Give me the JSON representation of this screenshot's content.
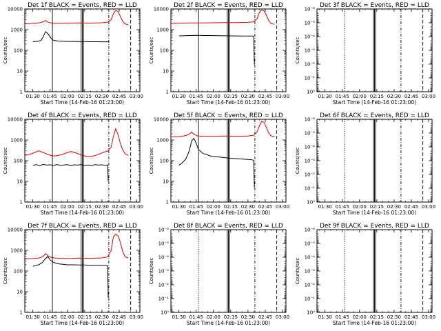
{
  "figure": {
    "xlabel": "Start Time (14-Feb-16 01:23:00)",
    "ylabel": "Counts/sec",
    "x_ticks": [
      "01:30",
      "01:45",
      "02:00",
      "02:15",
      "02:30",
      "02:45",
      "03:00"
    ],
    "x_tick_minutes": [
      90,
      105,
      120,
      135,
      150,
      165,
      180
    ],
    "colors": {
      "events": "#000000",
      "lld": "#e00000"
    }
  },
  "chart_data": [
    {
      "type": "line",
      "title": "Det 1f BLACK = Events, RED = LLD",
      "ylabel": "Counts/sec",
      "xlabel": "Start Time (14-Feb-16 01:23:00)",
      "xlim": [
        83,
        183
      ],
      "ylim": [
        1,
        10000
      ],
      "ytick_labels": [
        "1",
        "10",
        "100",
        "1000",
        "10000"
      ],
      "ytick_values": [
        1,
        10,
        100,
        1000,
        10000
      ],
      "grid": false,
      "annotations": [],
      "vlines": [
        {
          "x": 107,
          "style": "solid"
        },
        {
          "x": 132,
          "style": "solid"
        },
        {
          "x": 133,
          "style": "solid"
        },
        {
          "x": 134,
          "style": "solid"
        },
        {
          "x": 156,
          "style": "dashdot"
        },
        {
          "x": 175,
          "style": "dashed"
        }
      ],
      "series": [
        {
          "name": "Events",
          "color": "#000000",
          "x": [
            90,
            91,
            93,
            95,
            97,
            99,
            101,
            103,
            105,
            107,
            109,
            112,
            115,
            120,
            125,
            130,
            135,
            140,
            145,
            150,
            155,
            156
          ],
          "y": [
            260,
            270,
            270,
            280,
            300,
            450,
            800,
            650,
            450,
            320,
            300,
            280,
            275,
            270,
            270,
            265,
            265,
            262,
            262,
            260,
            260,
            260
          ]
        },
        {
          "name": "LLD",
          "color": "#e00000",
          "x": [
            83,
            90,
            95,
            99,
            101,
            103,
            106,
            110,
            120,
            130,
            140,
            150,
            155,
            158,
            160,
            162,
            164,
            166,
            168,
            170,
            173
          ],
          "y": [
            1900,
            2000,
            2100,
            2400,
            2800,
            2300,
            2100,
            2000,
            2050,
            2100,
            2050,
            2150,
            2300,
            3000,
            6000,
            8500,
            7500,
            4500,
            2600,
            1900,
            1700
          ]
        }
      ]
    },
    {
      "type": "line",
      "title": "Det 2f BLACK = Events, RED = LLD",
      "ylabel": "Counts/sec",
      "xlabel": "Start Time (14-Feb-16 01:23:00)",
      "xlim": [
        83,
        183
      ],
      "ylim": [
        1,
        10000
      ],
      "ytick_labels": [
        "1",
        "10",
        "100",
        "1000",
        "10000"
      ],
      "ytick_values": [
        1,
        10,
        100,
        1000,
        10000
      ],
      "grid": false,
      "annotations": [],
      "vlines": [
        {
          "x": 107,
          "style": "solid"
        },
        {
          "x": 132,
          "style": "solid"
        },
        {
          "x": 133,
          "style": "solid"
        },
        {
          "x": 134,
          "style": "solid"
        },
        {
          "x": 156,
          "style": "dashdot"
        },
        {
          "x": 175,
          "style": "dashed"
        }
      ],
      "series": [
        {
          "name": "Events",
          "color": "#000000",
          "x": [
            90,
            95,
            100,
            105,
            110,
            115,
            120,
            125,
            130,
            135,
            140,
            145,
            150,
            154,
            155,
            155.5
          ],
          "y": [
            500,
            510,
            520,
            530,
            525,
            520,
            515,
            510,
            505,
            500,
            498,
            495,
            490,
            490,
            480,
            20
          ]
        },
        {
          "name": "LLD",
          "color": "#e00000",
          "x": [
            83,
            90,
            100,
            110,
            120,
            130,
            140,
            150,
            155,
            158,
            160,
            162,
            164,
            166,
            168,
            170,
            173
          ],
          "y": [
            2000,
            2050,
            2100,
            2100,
            2150,
            2200,
            2200,
            2250,
            2400,
            3500,
            7000,
            9000,
            8000,
            5000,
            2800,
            2000,
            1800
          ]
        }
      ]
    },
    {
      "type": "line",
      "title": "Det 3f BLACK = Events, RED = LLD",
      "ylabel": "Counts/sec",
      "xlabel": "Start Time (14-Feb-16 01:23:00)",
      "xlim": [
        83,
        183
      ],
      "ylim": [
        1,
        1e-06
      ],
      "ytick_labels": [
        "10⁰",
        "10⁻¹",
        "10⁻²",
        "10⁻³",
        "10⁻⁴",
        "10⁻⁵",
        "10⁻⁶"
      ],
      "ytick_values": [
        1,
        0.1,
        0.01,
        0.001,
        0.0001,
        1e-05,
        1e-06
      ],
      "grid": false,
      "annotations": [],
      "vlines": [
        {
          "x": 107,
          "style": "dotted"
        },
        {
          "x": 132,
          "style": "solid"
        },
        {
          "x": 133,
          "style": "solid"
        },
        {
          "x": 134,
          "style": "solid"
        },
        {
          "x": 156,
          "style": "dashdot"
        },
        {
          "x": 175,
          "style": "dashed"
        }
      ],
      "series": []
    },
    {
      "type": "line",
      "title": "Det 4f BLACK = Events, RED = LLD",
      "ylabel": "Counts/sec",
      "xlabel": "Start Time (14-Feb-16 01:23:00)",
      "xlim": [
        83,
        183
      ],
      "ylim": [
        1,
        10000
      ],
      "ytick_labels": [
        "1",
        "10",
        "100",
        "1000",
        "10000"
      ],
      "ytick_values": [
        1,
        10,
        100,
        1000,
        10000
      ],
      "grid": false,
      "annotations": [],
      "vlines": [
        {
          "x": 107,
          "style": "solid"
        },
        {
          "x": 132,
          "style": "solid"
        },
        {
          "x": 133,
          "style": "solid"
        },
        {
          "x": 134,
          "style": "solid"
        },
        {
          "x": 156,
          "style": "dashdot"
        },
        {
          "x": 175,
          "style": "dashed"
        }
      ],
      "series": [
        {
          "name": "Events",
          "color": "#000000",
          "x": [
            90,
            93,
            96,
            99,
            102,
            105,
            108,
            111,
            114,
            117,
            120,
            123,
            126,
            129,
            132,
            135,
            138,
            141,
            144,
            147,
            150,
            153,
            155,
            155.5
          ],
          "y": [
            60,
            64,
            58,
            66,
            61,
            63,
            59,
            65,
            60,
            62,
            64,
            58,
            63,
            61,
            65,
            60,
            62,
            59,
            64,
            61,
            63,
            60,
            62,
            10
          ]
        },
        {
          "name": "LLD",
          "color": "#e00000",
          "x": [
            83,
            87,
            91,
            95,
            99,
            103,
            107,
            111,
            115,
            119,
            123,
            127,
            131,
            135,
            139,
            143,
            147,
            151,
            155,
            158,
            160,
            162,
            164,
            166,
            168,
            170,
            173
          ],
          "y": [
            180,
            200,
            240,
            300,
            250,
            200,
            170,
            175,
            195,
            235,
            280,
            240,
            200,
            170,
            160,
            170,
            200,
            250,
            290,
            450,
            1500,
            3500,
            1800,
            700,
            350,
            220,
            180
          ]
        }
      ]
    },
    {
      "type": "line",
      "title": "Det 5f BLACK = Events, RED = LLD",
      "ylabel": "Counts/sec",
      "xlabel": "Start Time (14-Feb-16 01:23:00)",
      "xlim": [
        83,
        183
      ],
      "ylim": [
        1,
        10000
      ],
      "ytick_labels": [
        "1",
        "10",
        "100",
        "1000",
        "10000"
      ],
      "ytick_values": [
        1,
        10,
        100,
        1000,
        10000
      ],
      "grid": false,
      "annotations": [],
      "vlines": [
        {
          "x": 107,
          "style": "solid"
        },
        {
          "x": 132,
          "style": "solid"
        },
        {
          "x": 133,
          "style": "solid"
        },
        {
          "x": 134,
          "style": "solid"
        },
        {
          "x": 156,
          "style": "dashdot"
        },
        {
          "x": 175,
          "style": "dashed"
        }
      ],
      "series": [
        {
          "name": "Events",
          "color": "#000000",
          "x": [
            90,
            93,
            96,
            99,
            101,
            103,
            105,
            107,
            109,
            111,
            114,
            117,
            120,
            125,
            130,
            135,
            140,
            145,
            150,
            154,
            155,
            155.5
          ],
          "y": [
            60,
            80,
            120,
            300,
            900,
            1200,
            700,
            350,
            280,
            220,
            200,
            170,
            160,
            150,
            140,
            130,
            125,
            120,
            115,
            110,
            100,
            5
          ]
        },
        {
          "name": "LLD",
          "color": "#e00000",
          "x": [
            83,
            90,
            95,
            99,
            101,
            103,
            106,
            110,
            120,
            130,
            140,
            150,
            155,
            158,
            160,
            162,
            164,
            166,
            168,
            170,
            173
          ],
          "y": [
            1400,
            1450,
            1600,
            1900,
            2400,
            1900,
            1600,
            1500,
            1500,
            1550,
            1500,
            1550,
            1700,
            2500,
            5000,
            8000,
            7000,
            4000,
            2200,
            1600,
            1400
          ]
        }
      ]
    },
    {
      "type": "line",
      "title": "Det 6f BLACK = Events, RED = LLD",
      "ylabel": "Counts/sec",
      "xlabel": "Start Time (14-Feb-16 01:23:00)",
      "xlim": [
        83,
        183
      ],
      "ylim": [
        1,
        1e-06
      ],
      "ytick_labels": [
        "10⁰",
        "10⁻¹",
        "10⁻²",
        "10⁻³",
        "10⁻⁴",
        "10⁻⁵",
        "10⁻⁶"
      ],
      "ytick_values": [
        1,
        0.1,
        0.01,
        0.001,
        0.0001,
        1e-05,
        1e-06
      ],
      "grid": false,
      "annotations": [],
      "vlines": [
        {
          "x": 107,
          "style": "dotted"
        },
        {
          "x": 132,
          "style": "solid"
        },
        {
          "x": 133,
          "style": "solid"
        },
        {
          "x": 134,
          "style": "solid"
        },
        {
          "x": 156,
          "style": "dashdot"
        },
        {
          "x": 175,
          "style": "dashed"
        }
      ],
      "series": []
    },
    {
      "type": "line",
      "title": "Det 7f BLACK = Events, RED = LLD",
      "ylabel": "Counts/sec",
      "xlabel": "Start Time (14-Feb-16 01:23:00)",
      "xlim": [
        83,
        183
      ],
      "ylim": [
        1,
        10000
      ],
      "ytick_labels": [
        "1",
        "10",
        "100",
        "1000",
        "10000"
      ],
      "ytick_values": [
        1,
        10,
        100,
        1000,
        10000
      ],
      "grid": false,
      "annotations": [],
      "vlines": [
        {
          "x": 107,
          "style": "solid"
        },
        {
          "x": 132,
          "style": "solid"
        },
        {
          "x": 133,
          "style": "solid"
        },
        {
          "x": 134,
          "style": "solid"
        },
        {
          "x": 156,
          "style": "dashdot"
        },
        {
          "x": 175,
          "style": "dashed"
        }
      ],
      "series": [
        {
          "name": "Events",
          "color": "#000000",
          "x": [
            90,
            92,
            95,
            98,
            101,
            103,
            105,
            107,
            110,
            113,
            116,
            120,
            125,
            130,
            135,
            140,
            145,
            150,
            154,
            155,
            155.5
          ],
          "y": [
            170,
            180,
            200,
            250,
            400,
            500,
            350,
            280,
            240,
            220,
            210,
            200,
            200,
            195,
            195,
            190,
            190,
            190,
            185,
            180,
            5
          ]
        },
        {
          "name": "LLD",
          "color": "#e00000",
          "x": [
            83,
            90,
            95,
            99,
            101,
            103,
            106,
            110,
            120,
            130,
            140,
            150,
            155,
            158,
            160,
            162,
            164,
            166,
            168,
            170,
            173
          ],
          "y": [
            380,
            400,
            420,
            500,
            700,
            550,
            450,
            420,
            400,
            420,
            410,
            430,
            480,
            1000,
            4500,
            6000,
            5000,
            2500,
            900,
            500,
            420
          ]
        }
      ]
    },
    {
      "type": "line",
      "title": "Det 8f BLACK = Events, RED = LLD",
      "ylabel": "Counts/sec",
      "xlabel": "Start Time (14-Feb-16 01:23:00)",
      "xlim": [
        83,
        183
      ],
      "ylim": [
        1,
        1e-06
      ],
      "ytick_labels": [
        "10⁰",
        "10⁻¹",
        "10⁻²",
        "10⁻³",
        "10⁻⁴",
        "10⁻⁵",
        "10⁻⁶"
      ],
      "ytick_values": [
        1,
        0.1,
        0.01,
        0.001,
        0.0001,
        1e-05,
        1e-06
      ],
      "grid": false,
      "annotations": [],
      "vlines": [
        {
          "x": 107,
          "style": "dotted"
        },
        {
          "x": 132,
          "style": "solid"
        },
        {
          "x": 133,
          "style": "solid"
        },
        {
          "x": 134,
          "style": "solid"
        },
        {
          "x": 156,
          "style": "dashdot"
        },
        {
          "x": 175,
          "style": "dashed"
        }
      ],
      "series": []
    },
    {
      "type": "line",
      "title": "Det 9f BLACK = Events, RED = LLD",
      "ylabel": "Counts/sec",
      "xlabel": "Start Time (14-Feb-16 01:23:00)",
      "xlim": [
        83,
        183
      ],
      "ylim": [
        1,
        1e-06
      ],
      "ytick_labels": [
        "10⁰",
        "10⁻¹",
        "10⁻²",
        "10⁻³",
        "10⁻⁴",
        "10⁻⁵",
        "10⁻⁶"
      ],
      "ytick_values": [
        1,
        0.1,
        0.01,
        0.001,
        0.0001,
        1e-05,
        1e-06
      ],
      "grid": false,
      "annotations": [],
      "vlines": [
        {
          "x": 107,
          "style": "dotted"
        },
        {
          "x": 132,
          "style": "solid"
        },
        {
          "x": 133,
          "style": "solid"
        },
        {
          "x": 134,
          "style": "solid"
        },
        {
          "x": 156,
          "style": "dashdot"
        },
        {
          "x": 175,
          "style": "dashed"
        }
      ],
      "series": []
    }
  ]
}
